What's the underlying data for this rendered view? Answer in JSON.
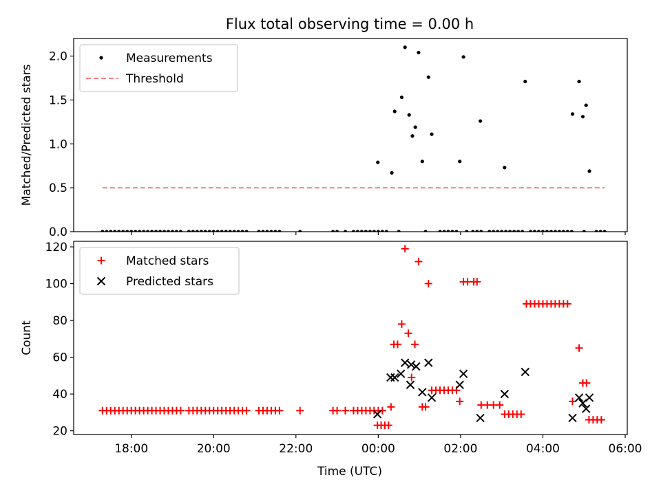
{
  "chart_data": [
    {
      "type": "scatter",
      "title": "Flux total observing time = 0.00 h",
      "xlabel": "",
      "ylabel": "Matched/Predicted stars",
      "xlim": [
        16.6,
        30.05
      ],
      "ylim": [
        0,
        2.2
      ],
      "yticks": [
        0.0,
        0.5,
        1.0,
        1.5,
        2.0
      ],
      "ytick_labels": [
        "0.0",
        "0.5",
        "1.0",
        "1.5",
        "2.0"
      ],
      "xticks": [
        18,
        20,
        22,
        24,
        26,
        28,
        30
      ],
      "legend_position": "top-left",
      "series": [
        {
          "name": "Measurements",
          "marker": "dot",
          "color": "#000000",
          "points": [
            [
              17.3,
              0
            ],
            [
              17.4,
              0
            ],
            [
              17.5,
              0
            ],
            [
              17.6,
              0
            ],
            [
              17.7,
              0
            ],
            [
              17.8,
              0
            ],
            [
              17.9,
              0
            ],
            [
              18.0,
              0
            ],
            [
              18.1,
              0
            ],
            [
              18.2,
              0
            ],
            [
              18.3,
              0
            ],
            [
              18.4,
              0
            ],
            [
              18.5,
              0
            ],
            [
              18.6,
              0
            ],
            [
              18.7,
              0
            ],
            [
              18.8,
              0
            ],
            [
              18.9,
              0
            ],
            [
              19.0,
              0
            ],
            [
              19.1,
              0
            ],
            [
              19.2,
              0
            ],
            [
              19.4,
              0
            ],
            [
              19.5,
              0
            ],
            [
              19.6,
              0
            ],
            [
              19.7,
              0
            ],
            [
              19.8,
              0
            ],
            [
              19.9,
              0
            ],
            [
              20.0,
              0
            ],
            [
              20.1,
              0
            ],
            [
              20.2,
              0
            ],
            [
              20.3,
              0
            ],
            [
              20.4,
              0
            ],
            [
              20.5,
              0
            ],
            [
              20.6,
              0
            ],
            [
              20.7,
              0
            ],
            [
              20.8,
              0
            ],
            [
              21.1,
              0
            ],
            [
              21.2,
              0
            ],
            [
              21.3,
              0
            ],
            [
              21.4,
              0
            ],
            [
              21.5,
              0
            ],
            [
              21.6,
              0
            ],
            [
              22.1,
              0
            ],
            [
              22.9,
              0
            ],
            [
              23.0,
              0
            ],
            [
              23.2,
              0
            ],
            [
              23.4,
              0
            ],
            [
              23.5,
              0
            ],
            [
              23.6,
              0
            ],
            [
              23.7,
              0
            ],
            [
              23.8,
              0
            ],
            [
              23.9,
              0
            ],
            [
              24.0,
              0
            ],
            [
              24.1,
              0
            ],
            [
              24.2,
              0
            ],
            [
              24.5,
              0
            ],
            [
              25.15,
              0
            ],
            [
              25.5,
              0
            ],
            [
              25.6,
              0
            ],
            [
              25.7,
              0
            ],
            [
              25.8,
              0
            ],
            [
              25.9,
              0
            ],
            [
              26.15,
              0
            ],
            [
              26.3,
              0
            ],
            [
              26.4,
              0
            ],
            [
              26.5,
              0
            ],
            [
              26.7,
              0
            ],
            [
              26.8,
              0
            ],
            [
              26.9,
              0
            ],
            [
              27.0,
              0
            ],
            [
              27.1,
              0
            ],
            [
              27.2,
              0
            ],
            [
              27.3,
              0
            ],
            [
              27.4,
              0
            ],
            [
              27.5,
              0
            ],
            [
              27.7,
              0
            ],
            [
              27.8,
              0
            ],
            [
              27.9,
              0
            ],
            [
              28.0,
              0
            ],
            [
              28.1,
              0
            ],
            [
              28.2,
              0
            ],
            [
              28.3,
              0
            ],
            [
              28.4,
              0
            ],
            [
              28.5,
              0
            ],
            [
              28.6,
              0
            ],
            [
              28.7,
              0
            ],
            [
              29.0,
              0
            ],
            [
              29.3,
              0
            ],
            [
              29.4,
              0
            ],
            [
              29.5,
              0
            ],
            [
              23.99,
              0.79
            ],
            [
              24.33,
              0.67
            ],
            [
              24.4,
              1.37
            ],
            [
              24.57,
              1.53
            ],
            [
              24.75,
              1.33
            ],
            [
              24.83,
              1.09
            ],
            [
              24.9,
              1.19
            ],
            [
              24.65,
              2.1
            ],
            [
              24.98,
              2.04
            ],
            [
              25.07,
              0.8
            ],
            [
              25.22,
              1.76
            ],
            [
              25.3,
              1.11
            ],
            [
              25.98,
              0.8
            ],
            [
              26.07,
              1.99
            ],
            [
              26.48,
              1.26
            ],
            [
              27.07,
              0.73
            ],
            [
              27.57,
              1.71
            ],
            [
              28.72,
              1.34
            ],
            [
              28.88,
              1.71
            ],
            [
              28.97,
              1.31
            ],
            [
              29.05,
              1.44
            ],
            [
              29.13,
              0.69
            ]
          ]
        },
        {
          "name": "Threshold",
          "style": "dashed",
          "color": "#ff7f7f",
          "x": [
            17.3,
            29.5
          ],
          "y": [
            0.5,
            0.5
          ]
        }
      ]
    },
    {
      "type": "scatter",
      "title": "",
      "xlabel": "Time (UTC)",
      "ylabel": "Count",
      "xlim": [
        16.6,
        30.05
      ],
      "ylim": [
        18,
        123
      ],
      "yticks": [
        20,
        40,
        60,
        80,
        100,
        120
      ],
      "ytick_labels": [
        "20",
        "40",
        "60",
        "80",
        "100",
        "120"
      ],
      "xticks": [
        18,
        20,
        22,
        24,
        26,
        28,
        30
      ],
      "xtick_labels": [
        "18:00",
        "20:00",
        "22:00",
        "00:00",
        "02:00",
        "04:00",
        "06:00"
      ],
      "legend_position": "top-left",
      "series": [
        {
          "name": "Matched stars",
          "marker": "plus",
          "color": "#ff0000",
          "points": [
            [
              17.3,
              31
            ],
            [
              17.4,
              31
            ],
            [
              17.5,
              31
            ],
            [
              17.6,
              31
            ],
            [
              17.7,
              31
            ],
            [
              17.8,
              31
            ],
            [
              17.9,
              31
            ],
            [
              18.0,
              31
            ],
            [
              18.1,
              31
            ],
            [
              18.2,
              31
            ],
            [
              18.3,
              31
            ],
            [
              18.4,
              31
            ],
            [
              18.5,
              31
            ],
            [
              18.6,
              31
            ],
            [
              18.7,
              31
            ],
            [
              18.8,
              31
            ],
            [
              18.9,
              31
            ],
            [
              19.0,
              31
            ],
            [
              19.1,
              31
            ],
            [
              19.2,
              31
            ],
            [
              19.4,
              31
            ],
            [
              19.5,
              31
            ],
            [
              19.6,
              31
            ],
            [
              19.7,
              31
            ],
            [
              19.8,
              31
            ],
            [
              19.9,
              31
            ],
            [
              20.0,
              31
            ],
            [
              20.1,
              31
            ],
            [
              20.2,
              31
            ],
            [
              20.3,
              31
            ],
            [
              20.4,
              31
            ],
            [
              20.5,
              31
            ],
            [
              20.6,
              31
            ],
            [
              20.7,
              31
            ],
            [
              20.8,
              31
            ],
            [
              21.1,
              31
            ],
            [
              21.2,
              31
            ],
            [
              21.3,
              31
            ],
            [
              21.4,
              31
            ],
            [
              21.5,
              31
            ],
            [
              21.6,
              31
            ],
            [
              22.1,
              31
            ],
            [
              22.9,
              31
            ],
            [
              23.0,
              31
            ],
            [
              23.2,
              31
            ],
            [
              23.4,
              31
            ],
            [
              23.5,
              31
            ],
            [
              23.6,
              31
            ],
            [
              23.7,
              31
            ],
            [
              23.8,
              31
            ],
            [
              23.9,
              31
            ],
            [
              24.0,
              31
            ],
            [
              24.1,
              31
            ],
            [
              23.98,
              23
            ],
            [
              24.07,
              23
            ],
            [
              24.16,
              23
            ],
            [
              24.25,
              23
            ],
            [
              24.31,
              33
            ],
            [
              24.38,
              67
            ],
            [
              24.47,
              67
            ],
            [
              24.57,
              78
            ],
            [
              24.65,
              119
            ],
            [
              24.73,
              73
            ],
            [
              24.81,
              49
            ],
            [
              24.89,
              67
            ],
            [
              24.98,
              112
            ],
            [
              25.07,
              33
            ],
            [
              25.15,
              33
            ],
            [
              25.22,
              100
            ],
            [
              25.3,
              42
            ],
            [
              25.4,
              42
            ],
            [
              25.5,
              42
            ],
            [
              25.6,
              42
            ],
            [
              25.7,
              42
            ],
            [
              25.8,
              42
            ],
            [
              25.9,
              42
            ],
            [
              25.98,
              36
            ],
            [
              26.07,
              101
            ],
            [
              26.17,
              101
            ],
            [
              26.32,
              101
            ],
            [
              26.4,
              101
            ],
            [
              26.5,
              34
            ],
            [
              26.65,
              34
            ],
            [
              26.8,
              34
            ],
            [
              26.95,
              34
            ],
            [
              27.07,
              29
            ],
            [
              27.17,
              29
            ],
            [
              27.27,
              29
            ],
            [
              27.37,
              29
            ],
            [
              27.47,
              29
            ],
            [
              27.6,
              89
            ],
            [
              27.7,
              89
            ],
            [
              27.8,
              89
            ],
            [
              27.9,
              89
            ],
            [
              28.0,
              89
            ],
            [
              28.1,
              89
            ],
            [
              28.2,
              89
            ],
            [
              28.3,
              89
            ],
            [
              28.4,
              89
            ],
            [
              28.5,
              89
            ],
            [
              28.6,
              89
            ],
            [
              28.72,
              36
            ],
            [
              28.88,
              65
            ],
            [
              28.97,
              46
            ],
            [
              29.06,
              46
            ],
            [
              29.12,
              26
            ],
            [
              29.22,
              26
            ],
            [
              29.32,
              26
            ],
            [
              29.42,
              26
            ]
          ]
        },
        {
          "name": "Predicted stars",
          "marker": "x",
          "color": "#000000",
          "points": [
            [
              23.98,
              29
            ],
            [
              24.3,
              49
            ],
            [
              24.4,
              49
            ],
            [
              24.55,
              51
            ],
            [
              24.65,
              57
            ],
            [
              24.78,
              45
            ],
            [
              24.8,
              56
            ],
            [
              24.92,
              55
            ],
            [
              25.07,
              41
            ],
            [
              25.22,
              57
            ],
            [
              25.3,
              38
            ],
            [
              25.98,
              45
            ],
            [
              26.07,
              51
            ],
            [
              26.48,
              27
            ],
            [
              27.07,
              40
            ],
            [
              27.57,
              52
            ],
            [
              28.72,
              27
            ],
            [
              28.88,
              38
            ],
            [
              28.97,
              35
            ],
            [
              29.05,
              32
            ],
            [
              29.13,
              38
            ]
          ]
        }
      ]
    }
  ]
}
